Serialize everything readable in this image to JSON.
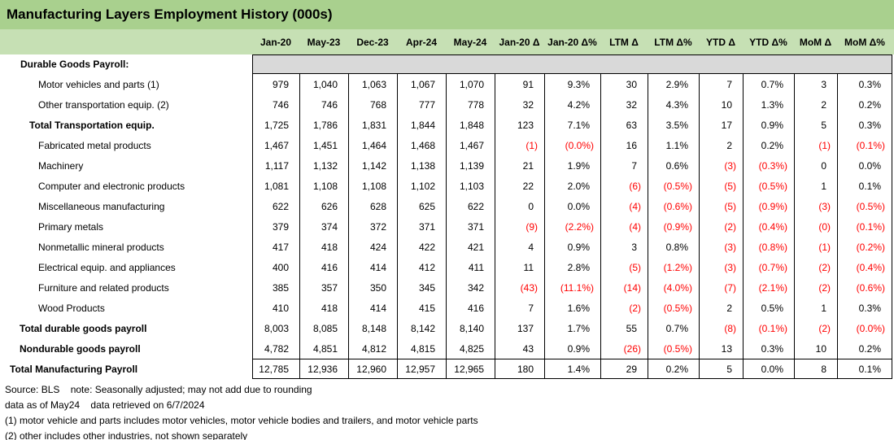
{
  "title": "Manufacturing Layers Employment History (000s)",
  "colors": {
    "title_band": "#a9d08e",
    "header_band": "#c6e0b4",
    "section_fill": "#d9d9d9",
    "negative_text": "#ff0000",
    "border": "#000000"
  },
  "table": {
    "columns": [
      "Jan-20",
      "May-23",
      "Dec-23",
      "Apr-24",
      "May-24",
      "Jan-20 Δ",
      "Jan-20 Δ%",
      "LTM Δ",
      "LTM Δ%",
      "YTD Δ",
      "YTD Δ%",
      "MoM Δ",
      "MoM Δ%"
    ],
    "rows": [
      {
        "label": "Durable Goods Payroll:",
        "style": "section",
        "values": []
      },
      {
        "label": "Motor vehicles and parts (1)",
        "style": "item",
        "values": [
          "979",
          "1,040",
          "1,063",
          "1,067",
          "1,070",
          "91",
          "9.3%",
          "30",
          "2.9%",
          "7",
          "0.7%",
          "3",
          "0.3%"
        ]
      },
      {
        "label": "Other transportation equip. (2)",
        "style": "item",
        "values": [
          "746",
          "746",
          "768",
          "777",
          "778",
          "32",
          "4.2%",
          "32",
          "4.3%",
          "10",
          "1.3%",
          "2",
          "0.2%"
        ]
      },
      {
        "label": "Total Transportation equip.",
        "style": "subtotal",
        "values": [
          "1,725",
          "1,786",
          "1,831",
          "1,844",
          "1,848",
          "123",
          "7.1%",
          "63",
          "3.5%",
          "17",
          "0.9%",
          "5",
          "0.3%"
        ]
      },
      {
        "label": "Fabricated metal products",
        "style": "item",
        "values": [
          "1,467",
          "1,451",
          "1,464",
          "1,468",
          "1,467",
          "(1)",
          "(0.0%)",
          "16",
          "1.1%",
          "2",
          "0.2%",
          "(1)",
          "(0.1%)"
        ]
      },
      {
        "label": "Machinery",
        "style": "item",
        "values": [
          "1,117",
          "1,132",
          "1,142",
          "1,138",
          "1,139",
          "21",
          "1.9%",
          "7",
          "0.6%",
          "(3)",
          "(0.3%)",
          "0",
          "0.0%"
        ]
      },
      {
        "label": "Computer and electronic products",
        "style": "item",
        "values": [
          "1,081",
          "1,108",
          "1,108",
          "1,102",
          "1,103",
          "22",
          "2.0%",
          "(6)",
          "(0.5%)",
          "(5)",
          "(0.5%)",
          "1",
          "0.1%"
        ]
      },
      {
        "label": "Miscellaneous manufacturing",
        "style": "item",
        "values": [
          "622",
          "626",
          "628",
          "625",
          "622",
          "0",
          "0.0%",
          "(4)",
          "(0.6%)",
          "(5)",
          "(0.9%)",
          "(3)",
          "(0.5%)"
        ]
      },
      {
        "label": "Primary metals",
        "style": "item",
        "values": [
          "379",
          "374",
          "372",
          "371",
          "371",
          "(9)",
          "(2.2%)",
          "(4)",
          "(0.9%)",
          "(2)",
          "(0.4%)",
          "(0)",
          "(0.1%)"
        ]
      },
      {
        "label": "Nonmetallic mineral products",
        "style": "item",
        "values": [
          "417",
          "418",
          "424",
          "422",
          "421",
          "4",
          "0.9%",
          "3",
          "0.8%",
          "(3)",
          "(0.8%)",
          "(1)",
          "(0.2%)"
        ]
      },
      {
        "label": "Electrical equip. and appliances",
        "style": "item",
        "values": [
          "400",
          "416",
          "414",
          "412",
          "411",
          "11",
          "2.8%",
          "(5)",
          "(1.2%)",
          "(3)",
          "(0.7%)",
          "(2)",
          "(0.4%)"
        ]
      },
      {
        "label": "Furniture and related products",
        "style": "item",
        "values": [
          "385",
          "357",
          "350",
          "345",
          "342",
          "(43)",
          "(11.1%)",
          "(14)",
          "(4.0%)",
          "(7)",
          "(2.1%)",
          "(2)",
          "(0.6%)"
        ]
      },
      {
        "label": "Wood Products",
        "style": "item",
        "values": [
          "410",
          "418",
          "414",
          "415",
          "416",
          "7",
          "1.6%",
          "(2)",
          "(0.5%)",
          "2",
          "0.5%",
          "1",
          "0.3%"
        ]
      },
      {
        "label": "Total durable goods payroll",
        "style": "total",
        "values": [
          "8,003",
          "8,085",
          "8,148",
          "8,142",
          "8,140",
          "137",
          "1.7%",
          "55",
          "0.7%",
          "(8)",
          "(0.1%)",
          "(2)",
          "(0.0%)"
        ]
      },
      {
        "label": "Nondurable goods payroll",
        "style": "total",
        "values": [
          "4,782",
          "4,851",
          "4,812",
          "4,815",
          "4,825",
          "43",
          "0.9%",
          "(26)",
          "(0.5%)",
          "13",
          "0.3%",
          "10",
          "0.2%"
        ]
      },
      {
        "label": "Total Manufacturing Payroll",
        "style": "grandtotal",
        "values": [
          "12,785",
          "12,936",
          "12,960",
          "12,957",
          "12,965",
          "180",
          "1.4%",
          "29",
          "0.2%",
          "5",
          "0.0%",
          "8",
          "0.1%"
        ]
      }
    ]
  },
  "footnotes": [
    "Source: BLS    note: Seasonally adjusted; may not add due to rounding",
    "data as of May24    data retrieved on 6/7/2024",
    "(1) motor vehicle and parts includes motor vehicles, motor vehicle bodies and trailers, and motor vehicle parts",
    "(2) other includes other industries, not shown separately"
  ]
}
